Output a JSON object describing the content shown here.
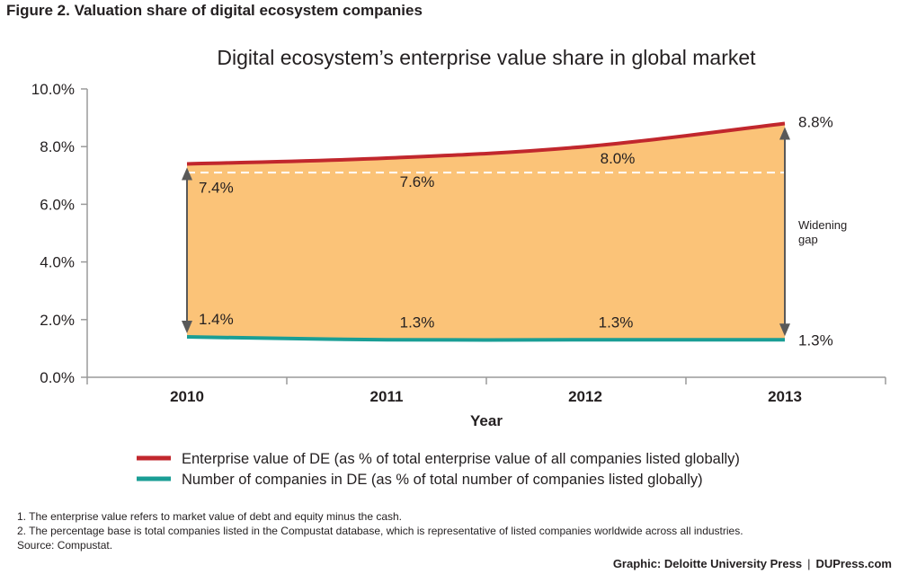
{
  "figure_title": "Figure 2. Valuation share of digital ecosystem companies",
  "chart_data": {
    "type": "area",
    "title": "Digital ecosystem’s enterprise value share in global market",
    "xlabel": "Year",
    "ylabel": "",
    "categories": [
      "2010",
      "2011",
      "2012",
      "2013"
    ],
    "ylim": [
      0,
      10
    ],
    "yticks": [
      "0.0%",
      "2.0%",
      "4.0%",
      "6.0%",
      "8.0%",
      "10.0%"
    ],
    "series": [
      {
        "name": "Enterprise value of DE (as % of total enterprise value of all companies listed globally)",
        "values": [
          7.4,
          7.6,
          8.0,
          8.8
        ],
        "labels": [
          "7.4%",
          "7.6%",
          "8.0%",
          "8.8%"
        ],
        "color": "#c1272d"
      },
      {
        "name": "Number of companies in DE (as % of total number of companies listed globally)",
        "values": [
          1.4,
          1.3,
          1.3,
          1.3
        ],
        "labels": [
          "1.4%",
          "1.3%",
          "1.3%",
          "1.3%"
        ],
        "color": "#1a9e95"
      }
    ],
    "fill_color": "#fbc378",
    "reference_line": 7.1,
    "annotation": [
      "Widening",
      "gap"
    ],
    "grid": false,
    "legend": "bottom"
  },
  "footnotes": [
    "1. The enterprise value refers to market value of debt and equity minus the cash.",
    "2. The percentage base is total companies listed in the Compustat database, which is representative of listed companies worldwide across all industries.",
    "Source: Compustat."
  ],
  "credit": {
    "graphic": "Graphic: Deloitte University Press",
    "separator": "|",
    "site": "DUPress.com"
  }
}
